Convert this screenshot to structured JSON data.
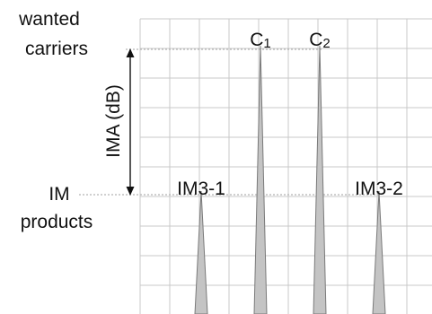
{
  "labels": {
    "wanted_line1": "wanted",
    "wanted_line2": "carriers",
    "im_line1": "IM",
    "im_line2": "products",
    "ima": "IMA (dB)",
    "c1_base": "C",
    "c1_sub": "1",
    "c2_base": "C",
    "c2_sub": "2",
    "im3_1": "IM3-1",
    "im3_2": "IM3-2"
  },
  "colors": {
    "grid": "#c8c8c8",
    "reference_line": "#b4b4b4",
    "spike_fill": "#c4c4c4",
    "spike_stroke": "#7a7a7a",
    "text": "#111111"
  }
}
